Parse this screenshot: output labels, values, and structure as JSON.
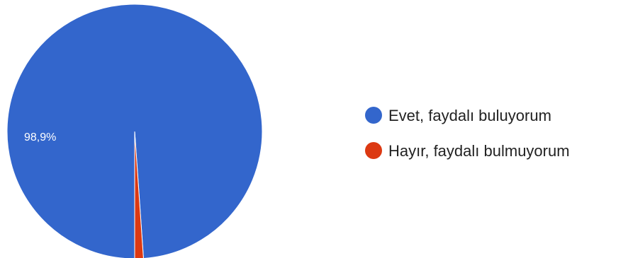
{
  "chart_data": {
    "type": "pie",
    "categories": [
      "Evet, faydalı buluyorum",
      "Hayır, faydalı bulmuyorum"
    ],
    "values": [
      98.9,
      1.1
    ],
    "value_labels": [
      "98,9%",
      ""
    ],
    "colors": [
      "#3366cc",
      "#dc3912"
    ],
    "legend_position": "right"
  }
}
